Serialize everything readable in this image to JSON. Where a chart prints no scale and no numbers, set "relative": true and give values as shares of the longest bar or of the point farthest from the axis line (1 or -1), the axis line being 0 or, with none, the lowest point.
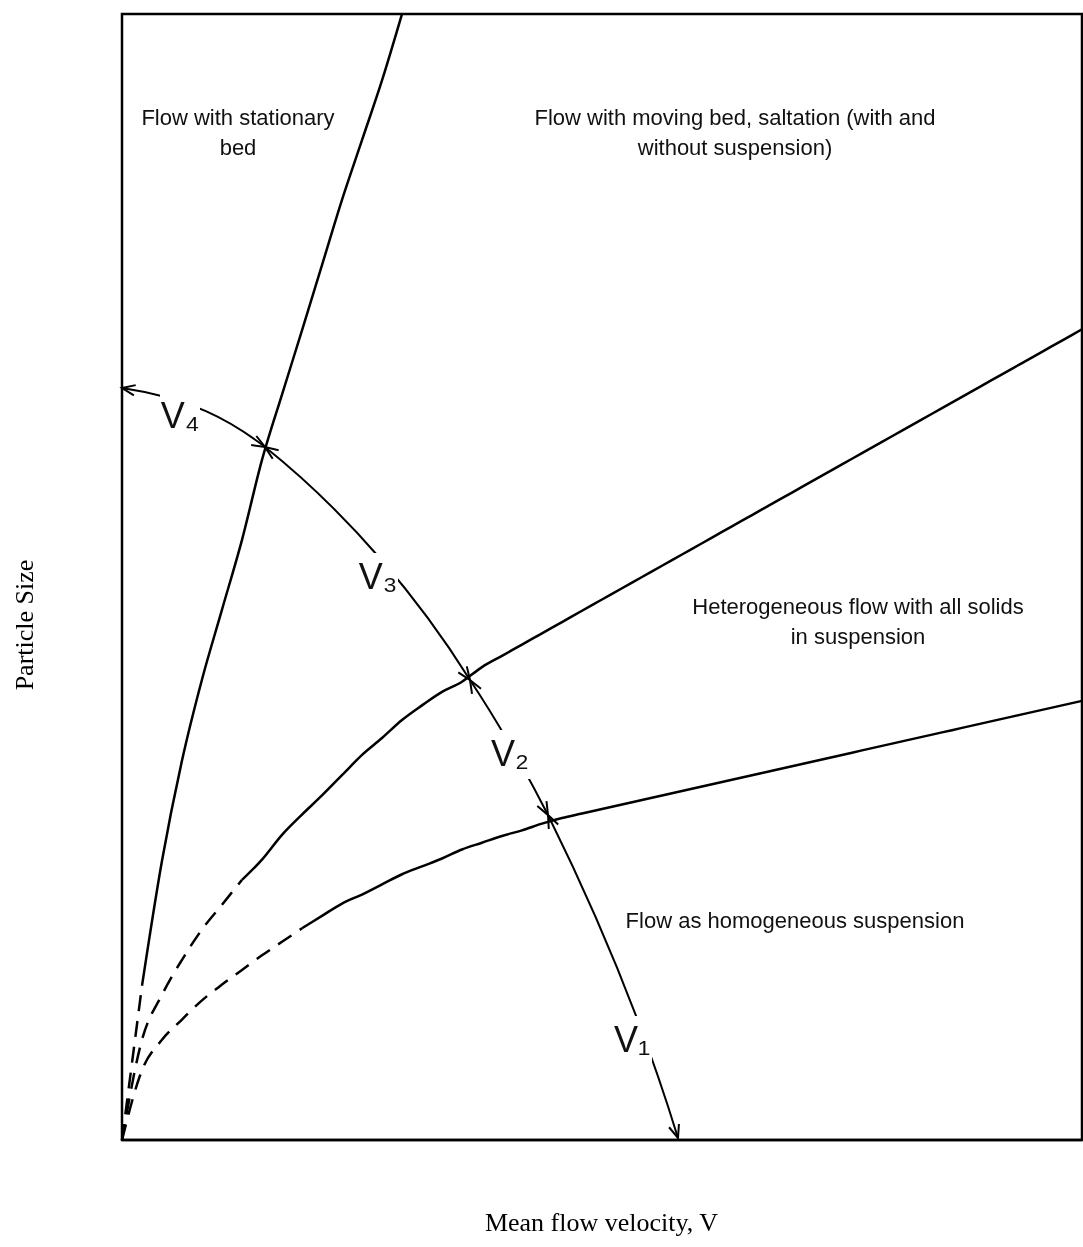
{
  "chart_data": {
    "type": "line",
    "relative": true,
    "xlabel": "Mean flow velocity, V",
    "ylabel": "Particle Size",
    "marker": "none",
    "categories": [
      null,
      null,
      null,
      null,
      null,
      null,
      null,
      null,
      null,
      null,
      null,
      null,
      null,
      null,
      null,
      null,
      null,
      null,
      null,
      null,
      null,
      null,
      null,
      null,
      null,
      null,
      null,
      null,
      null,
      null,
      null,
      null,
      null,
      null,
      null,
      null,
      null,
      null,
      null,
      null,
      null,
      null,
      null,
      null,
      null,
      null,
      null,
      null,
      null
    ],
    "series": [
      {
        "color": "#000000",
        "line_style": "dashed",
        "values": [
          0,
          0.137,
          null,
          null,
          null,
          null,
          null,
          null,
          null,
          null,
          null,
          null,
          null,
          null,
          null,
          null,
          null,
          null,
          null,
          null,
          null,
          null,
          null,
          null,
          null,
          null,
          null,
          null,
          null,
          null,
          null,
          null,
          null,
          null,
          null,
          null,
          null,
          null,
          null,
          null,
          null,
          null,
          null,
          null,
          null,
          null,
          null,
          null,
          null
        ]
      },
      {
        "color": "#000000",
        "line_style": "solid",
        "values": [
          null,
          0.137,
          0.248,
          0.337,
          0.409,
          0.471,
          0.533,
          0.604,
          0.662,
          0.719,
          0.777,
          0.835,
          0.888,
          0.941,
          1,
          null,
          null,
          null,
          null,
          null,
          null,
          null,
          null,
          null,
          null,
          null,
          null,
          null,
          null,
          null,
          null,
          null,
          null,
          null,
          null,
          null,
          null,
          null,
          null,
          null,
          null,
          null,
          null,
          null,
          null,
          null,
          null,
          null,
          null
        ]
      },
      {
        "color": "#000000",
        "line_style": "dashed",
        "values": [
          0,
          0.089,
          0.129,
          0.16,
          0.187,
          0.209,
          0.231,
          null,
          null,
          null,
          null,
          null,
          null,
          null,
          null,
          null,
          null,
          null,
          null,
          null,
          null,
          null,
          null,
          null,
          null,
          null,
          null,
          null,
          null,
          null,
          null,
          null,
          null,
          null,
          null,
          null,
          null,
          null,
          null,
          null,
          null,
          null,
          null,
          null,
          null,
          null,
          null,
          null,
          null
        ]
      },
      {
        "color": "#000000",
        "line_style": "solid",
        "values": [
          null,
          null,
          null,
          null,
          null,
          null,
          0.231,
          0.249,
          0.271,
          0.289,
          0.306,
          0.324,
          0.342,
          0.357,
          0.373,
          0.386,
          0.398,
          0.407,
          0.42,
          0.43,
          0.44,
          0.45,
          0.46,
          0.47,
          0.48,
          0.49,
          0.5,
          0.51,
          0.52,
          0.53,
          0.54,
          0.55,
          0.56,
          0.57,
          0.58,
          0.59,
          0.6,
          0.61,
          0.62,
          0.63,
          0.64,
          0.65,
          0.66,
          0.67,
          0.68,
          0.69,
          0.7,
          0.71,
          0.72
        ]
      },
      {
        "color": "#000000",
        "line_style": "dashed",
        "values": [
          0,
          0.062,
          0.089,
          0.107,
          0.124,
          0.138,
          0.151,
          0.164,
          0.176,
          0.188,
          null,
          null,
          null,
          null,
          null,
          null,
          null,
          null,
          null,
          null,
          null,
          null,
          null,
          null,
          null,
          null,
          null,
          null,
          null,
          null,
          null,
          null,
          null,
          null,
          null,
          null,
          null,
          null,
          null,
          null,
          null,
          null,
          null,
          null,
          null,
          null,
          null,
          null,
          null
        ]
      },
      {
        "color": "#000000",
        "line_style": "solid",
        "values": [
          null,
          null,
          null,
          null,
          null,
          null,
          null,
          null,
          null,
          0.188,
          0.199,
          0.21,
          0.218,
          0.227,
          0.236,
          0.243,
          0.25,
          0.258,
          0.264,
          0.27,
          0.275,
          0.281,
          0.286,
          0.29,
          0.294,
          0.298,
          0.302,
          0.306,
          0.31,
          0.314,
          0.318,
          0.322,
          0.326,
          0.33,
          0.334,
          0.338,
          0.342,
          0.346,
          0.35,
          0.354,
          0.358,
          0.362,
          0.366,
          0.37,
          0.374,
          0.378,
          0.382,
          0.386,
          0.39
        ]
      }
    ],
    "annotations": [
      "Flow with stationary bed",
      "Flow with moving bed, saltation (with and without suspension)",
      "Heterogeneous flow with all solids in suspension",
      "Flow as homogeneous suspension",
      "V₁",
      "V₂",
      "V₃",
      "V₄"
    ]
  }
}
